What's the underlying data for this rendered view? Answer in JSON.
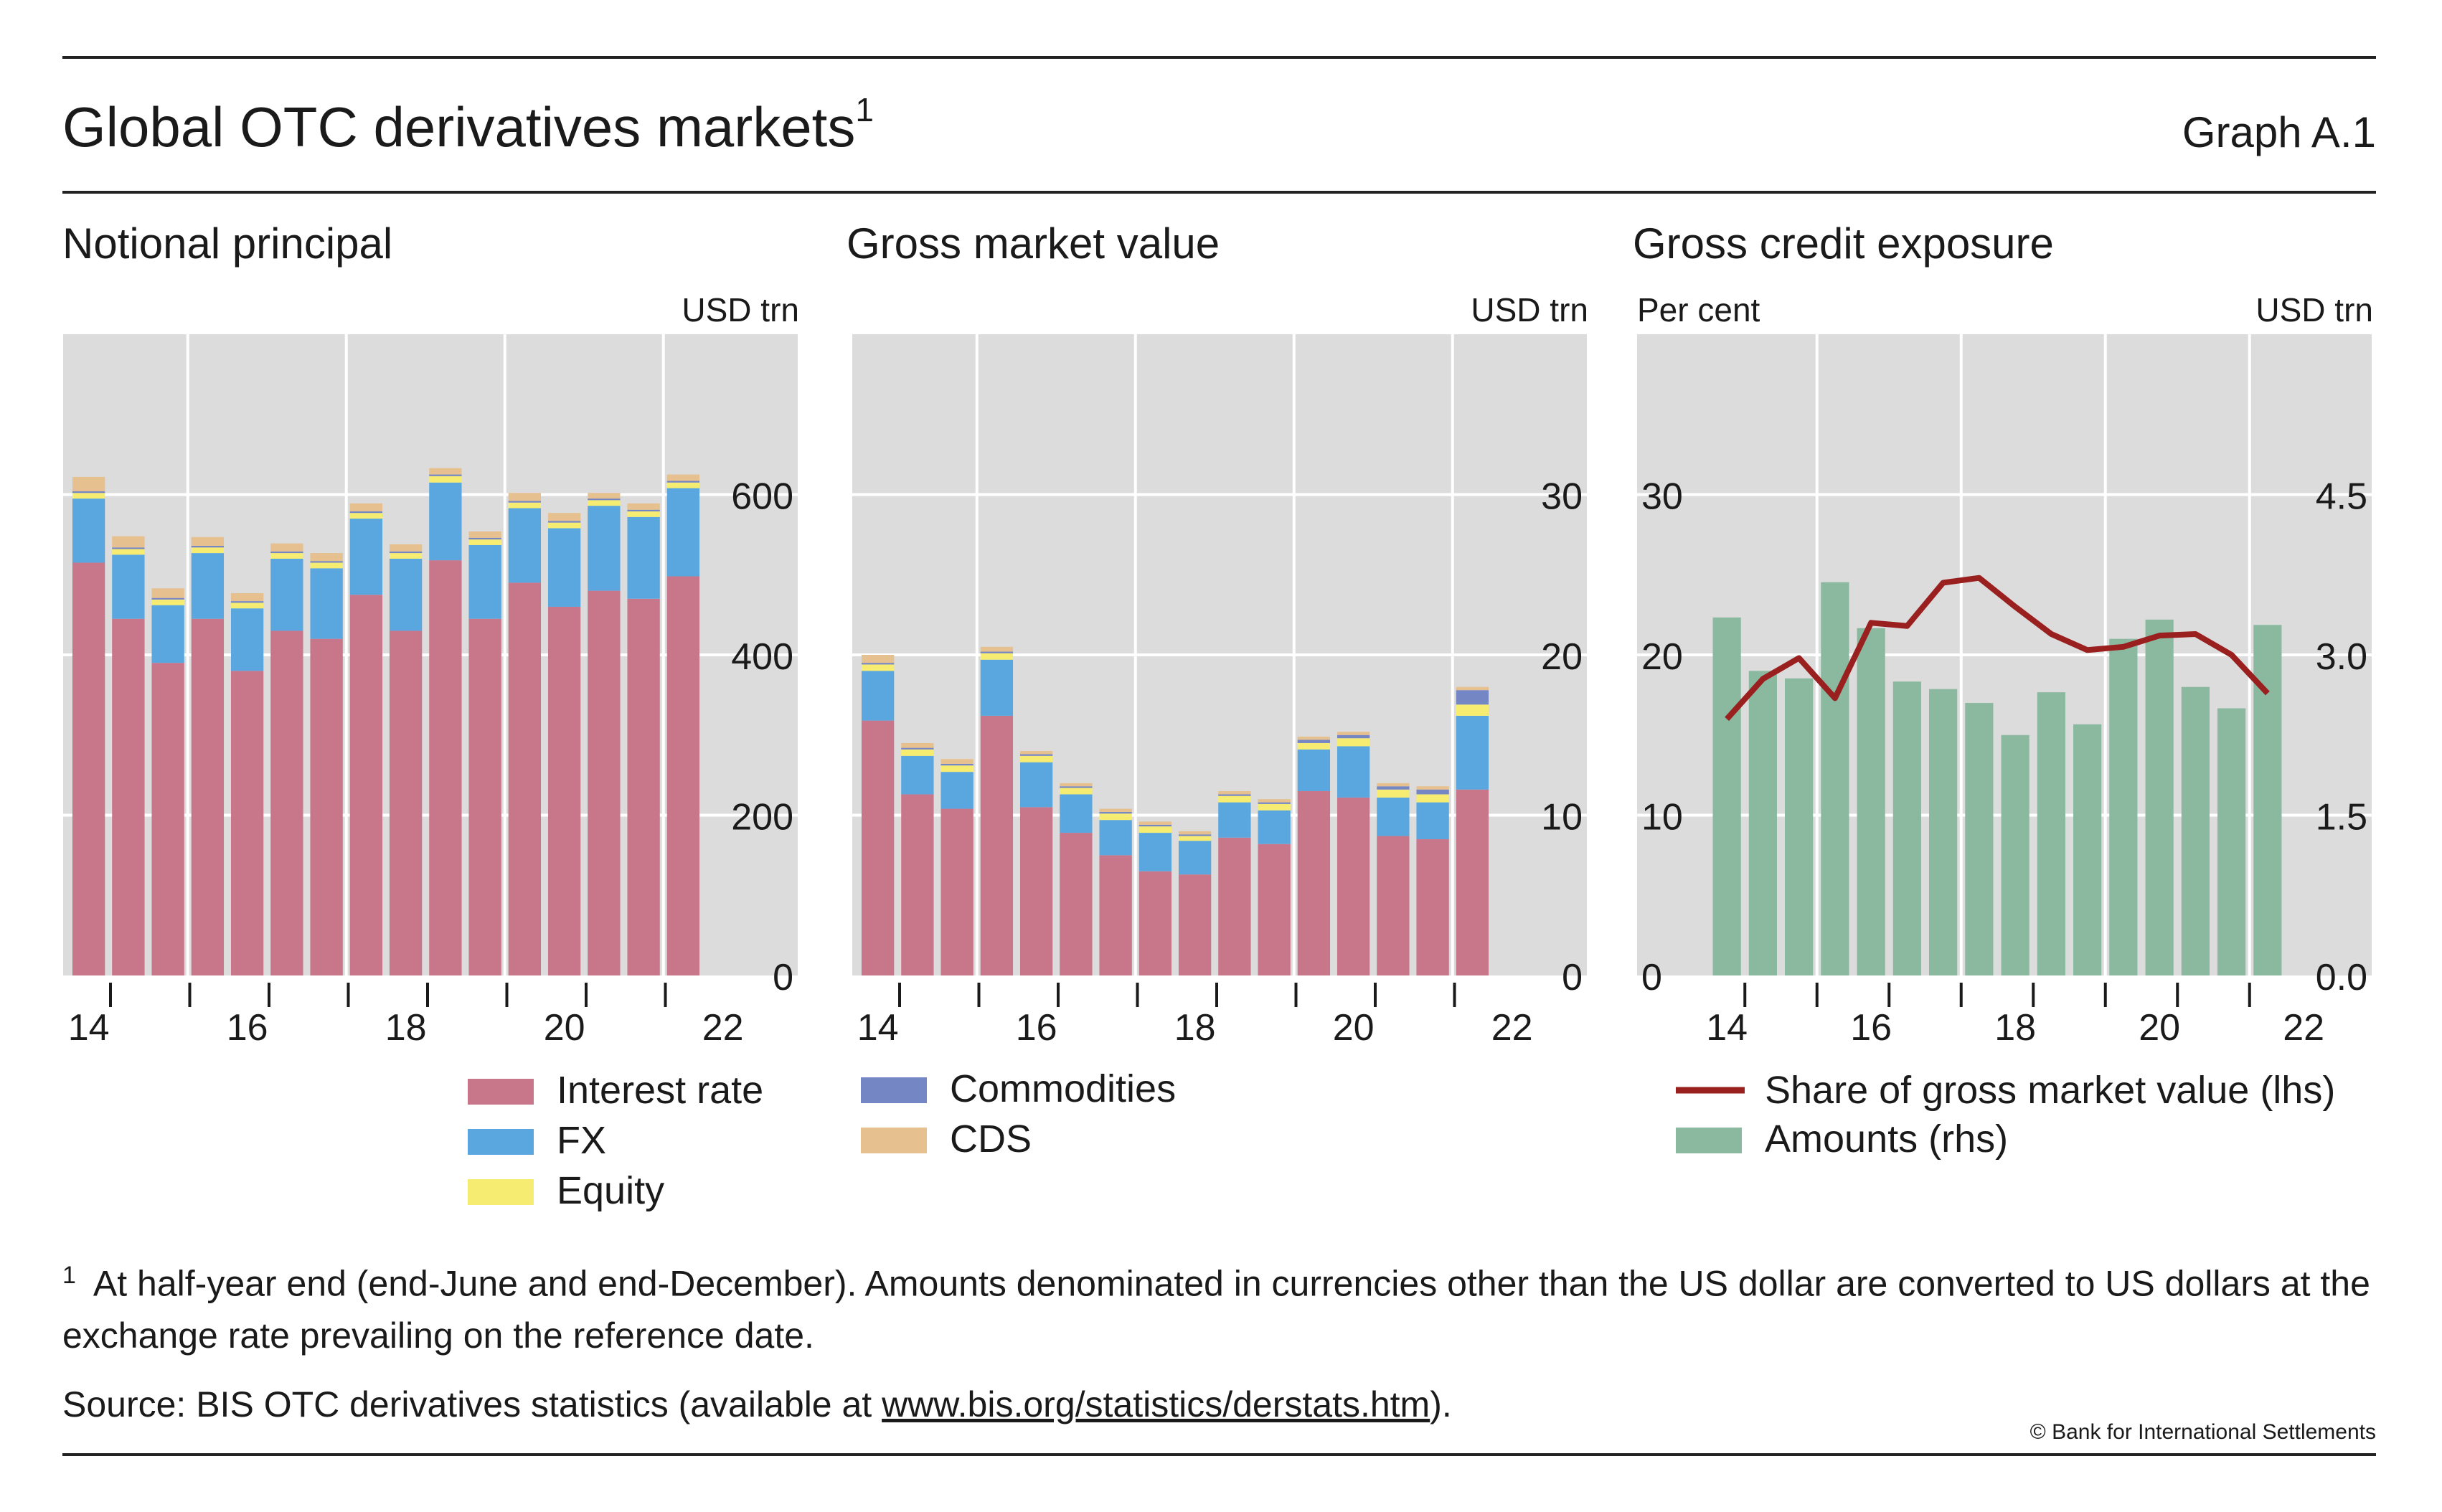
{
  "header": {
    "title": "Global OTC derivatives markets",
    "title_note": "1",
    "graph_id": "Graph A.1"
  },
  "colors": {
    "interest_rate": "#c8768a",
    "fx": "#5aa7df",
    "equity": "#f6ec72",
    "commodities": "#7586c4",
    "cds": "#e6c08e",
    "share_line": "#9a1f1f",
    "amounts": "#8ab99f",
    "panel_bg": "#dcdcdc"
  },
  "chart_data": [
    {
      "type": "bar",
      "title": "Notional principal",
      "right_unit": "USD trn",
      "left_unit": "",
      "ylim": [
        0,
        800
      ],
      "yticks": [
        0,
        200,
        400,
        600
      ],
      "xtick_labels": [
        "14",
        "16",
        "18",
        "20",
        "22"
      ],
      "n_bars": 16,
      "series": [
        {
          "name": "Interest rate",
          "key": "interest_rate",
          "values": [
            515,
            445,
            390,
            445,
            380,
            430,
            420,
            475,
            430,
            518,
            445,
            490,
            460,
            480,
            470,
            498
          ]
        },
        {
          "name": "FX",
          "key": "fx",
          "values": [
            80,
            80,
            72,
            82,
            78,
            90,
            88,
            95,
            90,
            97,
            92,
            93,
            98,
            106,
            102,
            110
          ]
        },
        {
          "name": "Equity",
          "key": "equity",
          "values": [
            7,
            7,
            7,
            7,
            7,
            7,
            7,
            7,
            7,
            8,
            7,
            7,
            7,
            7,
            7,
            7
          ]
        },
        {
          "name": "Commodities",
          "key": "commodities",
          "values": [
            2,
            2,
            2,
            2,
            2,
            2,
            2,
            2,
            2,
            2,
            2,
            2,
            2,
            2,
            2,
            2
          ]
        },
        {
          "name": "CDS",
          "key": "cds",
          "values": [
            18,
            14,
            12,
            11,
            10,
            10,
            10,
            10,
            9,
            8,
            8,
            10,
            10,
            7,
            8,
            8
          ]
        }
      ]
    },
    {
      "type": "bar",
      "title": "Gross market value",
      "right_unit": "USD trn",
      "left_unit": "",
      "ylim": [
        0,
        40
      ],
      "yticks": [
        0,
        10,
        20,
        30
      ],
      "xtick_labels": [
        "14",
        "16",
        "18",
        "20",
        "22"
      ],
      "n_bars": 16,
      "series": [
        {
          "name": "Interest rate",
          "key": "interest_rate",
          "values": [
            15.9,
            11.3,
            10.4,
            16.2,
            10.5,
            8.9,
            7.5,
            6.5,
            6.3,
            8.6,
            8.2,
            11.5,
            11.1,
            8.7,
            8.5,
            11.6
          ]
        },
        {
          "name": "FX",
          "key": "fx",
          "values": [
            3.1,
            2.4,
            2.3,
            3.5,
            2.8,
            2.4,
            2.2,
            2.4,
            2.1,
            2.2,
            2.1,
            2.6,
            3.2,
            2.4,
            2.3,
            4.6
          ]
        },
        {
          "name": "Equity",
          "key": "equity",
          "values": [
            0.4,
            0.4,
            0.4,
            0.4,
            0.4,
            0.4,
            0.4,
            0.4,
            0.3,
            0.4,
            0.4,
            0.4,
            0.5,
            0.5,
            0.5,
            0.7
          ]
        },
        {
          "name": "Commodities",
          "key": "commodities",
          "values": [
            0.1,
            0.1,
            0.1,
            0.1,
            0.1,
            0.1,
            0.1,
            0.1,
            0.1,
            0.1,
            0.1,
            0.2,
            0.2,
            0.2,
            0.3,
            0.9
          ]
        },
        {
          "name": "CDS",
          "key": "cds",
          "values": [
            0.5,
            0.3,
            0.3,
            0.3,
            0.2,
            0.2,
            0.2,
            0.2,
            0.2,
            0.2,
            0.2,
            0.2,
            0.2,
            0.2,
            0.2,
            0.2
          ]
        }
      ]
    },
    {
      "type": "bar+line",
      "title": "Gross credit exposure",
      "left_unit": "Per cent",
      "right_unit": "USD trn",
      "ylim_left": [
        0,
        40
      ],
      "yticks_left": [
        0,
        10,
        20,
        30
      ],
      "ylim_right": [
        0,
        6.0
      ],
      "yticks_right": [
        "0.0",
        "1.5",
        "3.0",
        "4.5"
      ],
      "yticks_right_values": [
        0,
        1.5,
        3.0,
        4.5
      ],
      "xtick_labels": [
        "14",
        "16",
        "18",
        "20",
        "22"
      ],
      "n_bars": 16,
      "bars": {
        "name": "Amounts (rhs)",
        "key": "amounts",
        "values": [
          3.35,
          2.85,
          2.78,
          3.68,
          3.25,
          2.75,
          2.68,
          2.55,
          2.25,
          2.65,
          2.35,
          3.15,
          3.33,
          2.7,
          2.5,
          3.28
        ]
      },
      "line": {
        "name": "Share of gross market value (lhs)",
        "key": "share_line",
        "values": [
          16,
          18.5,
          19.8,
          17.3,
          22,
          21.8,
          24.5,
          24.8,
          23,
          21.3,
          20.3,
          20.5,
          21.2,
          21.3,
          20,
          17.6
        ]
      }
    }
  ],
  "legend": {
    "left_col": [
      "Interest rate",
      "FX",
      "Equity"
    ],
    "mid_col": [
      "Commodities",
      "CDS"
    ],
    "right_col": [
      "Share of gross market value (lhs)",
      "Amounts (rhs)"
    ]
  },
  "footnote": {
    "mark": "1",
    "text": "At half-year end (end-June and end-December). Amounts denominated in currencies other than the US dollar are converted to US dollars at the exchange rate prevailing on the reference date."
  },
  "source": {
    "prefix": "Source: BIS OTC derivatives statistics (available at ",
    "link": "www.bis.org/statistics/derstats.htm",
    "suffix": ")."
  },
  "copyright": "© Bank for International Settlements"
}
